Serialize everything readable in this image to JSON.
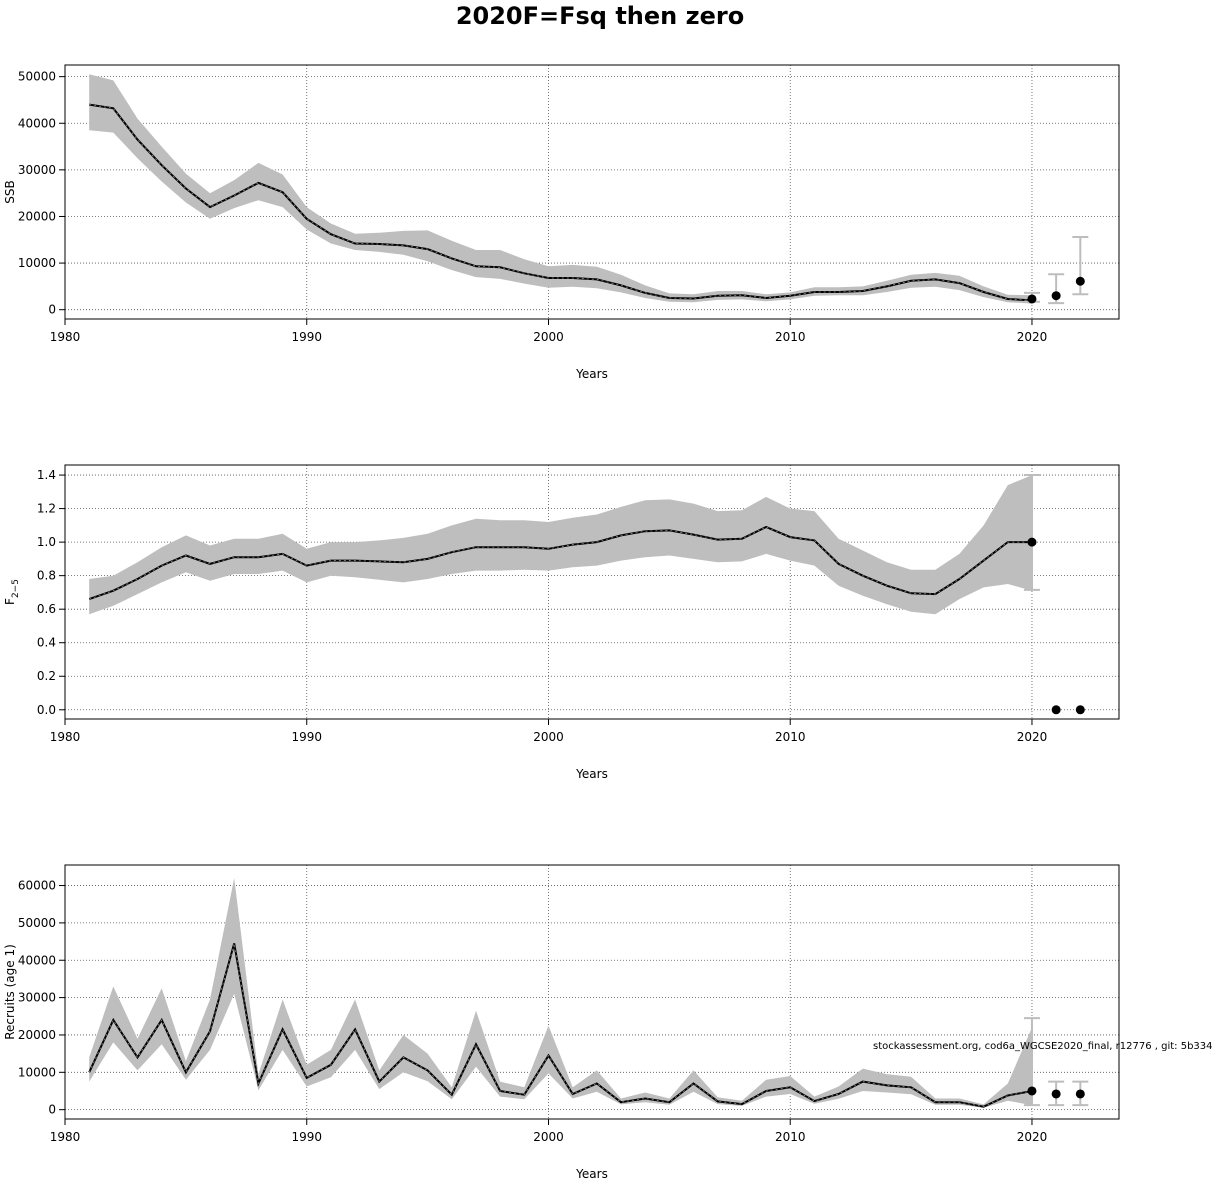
{
  "title": "2020F=Fsq then zero",
  "footer": "stockassessment.org, cod6a_WGCSE2020_final, r12776 , git: 5b334",
  "colors": {
    "band": "#bebebe",
    "line": "#000000",
    "grid": "#555555",
    "whisker": "#bdbdbd",
    "point": "#000000"
  },
  "chart_data": [
    {
      "type": "line",
      "xlabel": "Years",
      "ylabel": "SSB",
      "ylabel_sub": "",
      "xlim": [
        1980,
        2023.6
      ],
      "ylim": [
        -2000,
        52500
      ],
      "xticks": [
        1980,
        1990,
        2000,
        2010,
        2020
      ],
      "yticks": [
        0,
        10000,
        20000,
        30000,
        40000,
        50000
      ],
      "ytick_labels": [
        "0",
        "10000",
        "20000",
        "30000",
        "40000",
        "50000"
      ],
      "years": [
        1981,
        1982,
        1983,
        1984,
        1985,
        1986,
        1987,
        1988,
        1989,
        1990,
        1991,
        1992,
        1993,
        1994,
        1995,
        1996,
        1997,
        1998,
        1999,
        2000,
        2001,
        2002,
        2003,
        2004,
        2005,
        2006,
        2007,
        2008,
        2009,
        2010,
        2011,
        2012,
        2013,
        2014,
        2015,
        2016,
        2017,
        2018,
        2019,
        2020
      ],
      "estimate": [
        44000,
        43200,
        36500,
        31000,
        26000,
        22000,
        24500,
        27200,
        25200,
        19500,
        16200,
        14200,
        14100,
        13800,
        13000,
        11000,
        9300,
        9100,
        7800,
        6800,
        6800,
        6500,
        5200,
        3600,
        2500,
        2400,
        3000,
        3100,
        2500,
        3000,
        3800,
        3800,
        4000,
        5000,
        6200,
        6500,
        5700,
        3800,
        2300,
        2000
      ],
      "lower": [
        38500,
        38000,
        32500,
        27500,
        23000,
        19500,
        21800,
        23500,
        22000,
        17200,
        14200,
        12800,
        12400,
        11800,
        10400,
        8500,
        7000,
        6600,
        5600,
        4700,
        4900,
        4600,
        3700,
        2500,
        1700,
        1600,
        2100,
        2200,
        1800,
        2200,
        3000,
        3100,
        3100,
        3800,
        4700,
        4900,
        4200,
        2700,
        1600,
        1300
      ],
      "upper": [
        50500,
        49200,
        41000,
        35000,
        29200,
        25000,
        27800,
        31500,
        29000,
        22000,
        18500,
        16300,
        16500,
        16900,
        17000,
        14800,
        12800,
        12800,
        10800,
        9300,
        9600,
        9200,
        7500,
        5200,
        3500,
        3300,
        4000,
        4000,
        3300,
        3700,
        4800,
        4800,
        5000,
        6200,
        7500,
        7900,
        7300,
        5000,
        3200,
        3100
      ],
      "projections": [
        {
          "year": 2020,
          "value": 2300,
          "low": 1700,
          "high": 3600
        },
        {
          "year": 2021,
          "value": 3000,
          "low": 1400,
          "high": 7600
        },
        {
          "year": 2022,
          "value": 6100,
          "low": 3300,
          "high": 15600
        }
      ]
    },
    {
      "type": "line",
      "xlabel": "Years",
      "ylabel": "F",
      "ylabel_sub": "2−5",
      "xlim": [
        1980,
        2023.6
      ],
      "ylim": [
        -0.055,
        1.46
      ],
      "xticks": [
        1980,
        1990,
        2000,
        2010,
        2020
      ],
      "yticks": [
        0,
        0.2,
        0.4,
        0.6,
        0.8,
        1.0,
        1.2,
        1.4
      ],
      "ytick_labels": [
        "0.0",
        "0.2",
        "0.4",
        "0.6",
        "0.8",
        "1.0",
        "1.2",
        "1.4"
      ],
      "years": [
        1981,
        1982,
        1983,
        1984,
        1985,
        1986,
        1987,
        1988,
        1989,
        1990,
        1991,
        1992,
        1993,
        1994,
        1995,
        1996,
        1997,
        1998,
        1999,
        2000,
        2001,
        2002,
        2003,
        2004,
        2005,
        2006,
        2007,
        2008,
        2009,
        2010,
        2011,
        2012,
        2013,
        2014,
        2015,
        2016,
        2017,
        2018,
        2019,
        2020
      ],
      "estimate": [
        0.66,
        0.71,
        0.78,
        0.86,
        0.92,
        0.87,
        0.91,
        0.91,
        0.93,
        0.86,
        0.89,
        0.89,
        0.885,
        0.88,
        0.9,
        0.94,
        0.97,
        0.97,
        0.97,
        0.96,
        0.985,
        1.0,
        1.04,
        1.065,
        1.07,
        1.045,
        1.015,
        1.02,
        1.09,
        1.03,
        1.01,
        0.87,
        0.8,
        0.74,
        0.695,
        0.69,
        0.78,
        0.89,
        1.0,
        1.0
      ],
      "lower": [
        0.57,
        0.62,
        0.69,
        0.76,
        0.82,
        0.77,
        0.81,
        0.81,
        0.83,
        0.76,
        0.8,
        0.79,
        0.775,
        0.76,
        0.78,
        0.81,
        0.83,
        0.83,
        0.835,
        0.83,
        0.85,
        0.86,
        0.89,
        0.91,
        0.92,
        0.9,
        0.88,
        0.885,
        0.93,
        0.89,
        0.86,
        0.74,
        0.68,
        0.63,
        0.585,
        0.57,
        0.66,
        0.73,
        0.75,
        0.71
      ],
      "upper": [
        0.78,
        0.8,
        0.88,
        0.97,
        1.04,
        0.98,
        1.02,
        1.02,
        1.05,
        0.96,
        1.0,
        1.0,
        1.01,
        1.025,
        1.05,
        1.1,
        1.14,
        1.13,
        1.13,
        1.12,
        1.145,
        1.165,
        1.21,
        1.25,
        1.255,
        1.23,
        1.185,
        1.19,
        1.27,
        1.2,
        1.185,
        1.02,
        0.95,
        0.88,
        0.835,
        0.835,
        0.93,
        1.1,
        1.34,
        1.4
      ],
      "projections": [
        {
          "year": 2020,
          "value": 1.0,
          "low": 0.715,
          "high": 1.4
        },
        {
          "year": 2021,
          "value": 0.0,
          "low": null,
          "high": null
        },
        {
          "year": 2022,
          "value": 0.0,
          "low": null,
          "high": null
        }
      ]
    },
    {
      "type": "line",
      "xlabel": "Years",
      "ylabel": "Recruits (age 1)",
      "ylabel_sub": "",
      "xlim": [
        1980,
        2023.6
      ],
      "ylim": [
        -2500,
        65500
      ],
      "xticks": [
        1980,
        1990,
        2000,
        2010,
        2020
      ],
      "yticks": [
        0,
        10000,
        20000,
        30000,
        40000,
        50000,
        60000
      ],
      "ytick_labels": [
        "0",
        "10000",
        "20000",
        "30000",
        "40000",
        "50000",
        "60000"
      ],
      "years": [
        1981,
        1982,
        1983,
        1984,
        1985,
        1986,
        1987,
        1988,
        1989,
        1990,
        1991,
        1992,
        1993,
        1994,
        1995,
        1996,
        1997,
        1998,
        1999,
        2000,
        2001,
        2002,
        2003,
        2004,
        2005,
        2006,
        2007,
        2008,
        2009,
        2010,
        2011,
        2012,
        2013,
        2014,
        2015,
        2016,
        2017,
        2018,
        2019,
        2020
      ],
      "estimate": [
        10000,
        24000,
        14000,
        24000,
        10000,
        21000,
        44500,
        7000,
        21500,
        8500,
        12000,
        21500,
        7500,
        14000,
        10500,
        4000,
        17500,
        5000,
        4000,
        14500,
        4200,
        7000,
        2000,
        3000,
        2000,
        7000,
        2200,
        1500,
        5000,
        6000,
        2300,
        4200,
        7500,
        6500,
        6000,
        2000,
        2000,
        800,
        3800,
        5000
      ],
      "lower": [
        7500,
        18000,
        10500,
        17500,
        8000,
        16000,
        31000,
        5200,
        16000,
        6200,
        8700,
        16000,
        5500,
        10000,
        7600,
        2800,
        11500,
        3500,
        2800,
        9700,
        3000,
        4800,
        1400,
        2000,
        1300,
        4800,
        1500,
        1000,
        3500,
        4200,
        1600,
        2900,
        5000,
        4600,
        4100,
        1300,
        1300,
        500,
        2400,
        1200
      ],
      "upper": [
        14000,
        33000,
        19000,
        32500,
        13000,
        29500,
        62000,
        9500,
        29500,
        12000,
        16000,
        29500,
        10500,
        20000,
        15000,
        6000,
        26500,
        7500,
        6000,
        22500,
        6000,
        10500,
        3000,
        4600,
        3000,
        10500,
        3300,
        2400,
        8000,
        9000,
        3500,
        6200,
        11000,
        9500,
        8800,
        3000,
        3000,
        1400,
        7000,
        22000
      ],
      "projections": [
        {
          "year": 2020,
          "value": 5000,
          "low": 1200,
          "high": 24500
        },
        {
          "year": 2021,
          "value": 4200,
          "low": 1200,
          "high": 7500
        },
        {
          "year": 2022,
          "value": 4200,
          "low": 1200,
          "high": 7500
        }
      ]
    }
  ]
}
